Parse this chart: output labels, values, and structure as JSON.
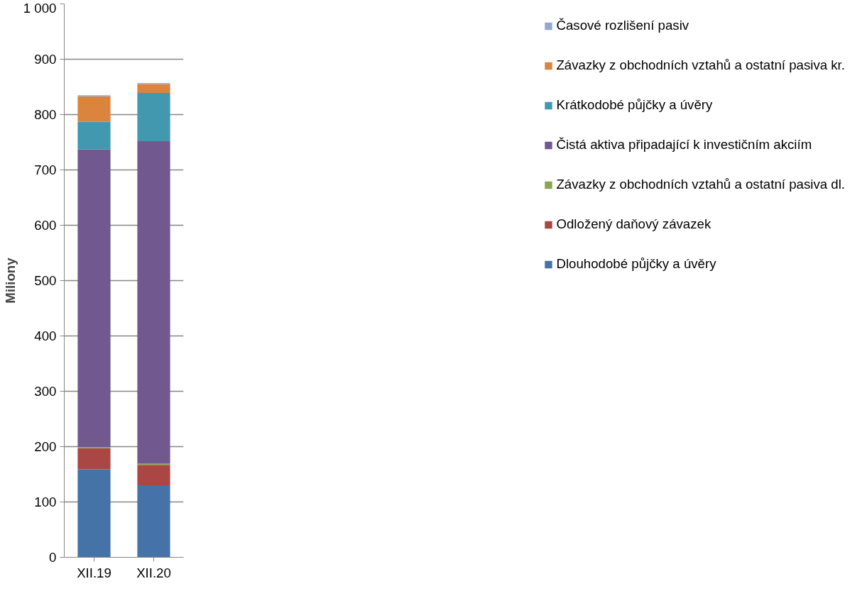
{
  "chart_data": {
    "type": "bar",
    "stacked": true,
    "ylabel": "Miliony",
    "categories": [
      "XII.19",
      "XII.20"
    ],
    "ylim": [
      0,
      1000
    ],
    "yticks": [
      0,
      100,
      200,
      300,
      400,
      500,
      600,
      700,
      800,
      900,
      {
        "value": 1000,
        "label": "1 000"
      }
    ],
    "grid": "y",
    "legend": "right",
    "series": [
      {
        "name": "Dlouhodobé půjčky a úvěry",
        "color": "#4572a7",
        "values": [
          159,
          130
        ]
      },
      {
        "name": "Odložený daňový závazek",
        "color": "#aa4643",
        "values": [
          38,
          37
        ]
      },
      {
        "name": "Závazky z obchodních vztahů a ostatní pasiva dl.",
        "color": "#89a54e",
        "values": [
          2,
          3
        ]
      },
      {
        "name": "Čistá aktiva připadající k investičním akciím",
        "color": "#71588f",
        "values": [
          538,
          582
        ]
      },
      {
        "name": "Krátkodobé půjčky a úvěry",
        "color": "#4198af",
        "values": [
          50,
          87
        ]
      },
      {
        "name": "Závazky z obchodních vztahů a ostatní pasiva kr.",
        "color": "#db843d",
        "values": [
          46,
          16
        ]
      },
      {
        "name": "Časové rozlišení pasiv",
        "color": "#93a9cf",
        "values": [
          2,
          2
        ]
      }
    ]
  }
}
